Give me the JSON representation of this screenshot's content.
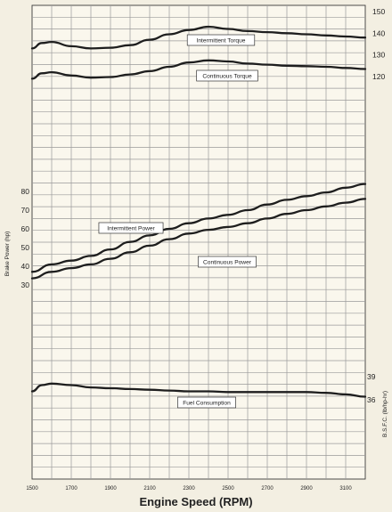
{
  "chart_data": {
    "type": "line",
    "xlabel": "Engine Speed (RPM)",
    "x_ticks": [
      "1500",
      "1700",
      "1900",
      "2100",
      "2300",
      "2500",
      "2700",
      "2900",
      "3100"
    ],
    "xlim": [
      1500,
      3200
    ],
    "panels": [
      {
        "id": "torque",
        "ylabel": "",
        "yticks": [
          120,
          130,
          140,
          150
        ],
        "ylim": [
          112,
          152
        ],
        "series": [
          {
            "name": "Intermittent Torque",
            "points": [
              [
                1500,
                133
              ],
              [
                1550,
                135.5
              ],
              [
                1600,
                136
              ],
              [
                1700,
                134
              ],
              [
                1800,
                133
              ],
              [
                1900,
                133.3
              ],
              [
                2000,
                134.5
              ],
              [
                2100,
                137
              ],
              [
                2200,
                139.5
              ],
              [
                2300,
                141.5
              ],
              [
                2400,
                143
              ],
              [
                2500,
                142
              ],
              [
                2600,
                141
              ],
              [
                2700,
                140.5
              ],
              [
                2800,
                140
              ],
              [
                2900,
                139.5
              ],
              [
                3000,
                139
              ],
              [
                3100,
                138.5
              ],
              [
                3200,
                138
              ]
            ]
          },
          {
            "name": "Continuous Torque",
            "points": [
              [
                1500,
                119
              ],
              [
                1550,
                121.5
              ],
              [
                1600,
                122
              ],
              [
                1700,
                120.5
              ],
              [
                1800,
                119.5
              ],
              [
                1900,
                119.8
              ],
              [
                2000,
                121
              ],
              [
                2100,
                122.5
              ],
              [
                2200,
                124.5
              ],
              [
                2300,
                126.5
              ],
              [
                2400,
                127.5
              ],
              [
                2500,
                127
              ],
              [
                2600,
                126
              ],
              [
                2700,
                125.5
              ],
              [
                2800,
                125
              ],
              [
                2900,
                124.8
              ],
              [
                3000,
                124.5
              ],
              [
                3100,
                124
              ],
              [
                3200,
                123.5
              ]
            ]
          }
        ]
      },
      {
        "id": "power",
        "ylabel": "Brake Power (hp)",
        "yticks": [
          30,
          40,
          50,
          60,
          70,
          80
        ],
        "ylim": [
          21,
          85
        ],
        "series": [
          {
            "name": "Intermittent Power",
            "points": [
              [
                1500,
                37
              ],
              [
                1600,
                41
              ],
              [
                1700,
                43
              ],
              [
                1800,
                45.5
              ],
              [
                1900,
                49
              ],
              [
                2000,
                53
              ],
              [
                2100,
                56.5
              ],
              [
                2200,
                60
              ],
              [
                2300,
                63
              ],
              [
                2400,
                65.5
              ],
              [
                2500,
                67.5
              ],
              [
                2600,
                70
              ],
              [
                2700,
                73
              ],
              [
                2800,
                75.5
              ],
              [
                2900,
                77.5
              ],
              [
                3000,
                79.5
              ],
              [
                3100,
                82
              ],
              [
                3200,
                84
              ]
            ]
          },
          {
            "name": "Continuous Power",
            "points": [
              [
                1500,
                33.5
              ],
              [
                1600,
                37
              ],
              [
                1700,
                39
              ],
              [
                1800,
                41
              ],
              [
                1900,
                44
              ],
              [
                2000,
                47.5
              ],
              [
                2100,
                51
              ],
              [
                2200,
                54.5
              ],
              [
                2300,
                57.5
              ],
              [
                2400,
                59.5
              ],
              [
                2500,
                61
              ],
              [
                2600,
                63
              ],
              [
                2700,
                65.5
              ],
              [
                2800,
                68
              ],
              [
                2900,
                70
              ],
              [
                3000,
                72
              ],
              [
                3100,
                74
              ],
              [
                3200,
                76
              ]
            ]
          }
        ]
      },
      {
        "id": "bsfc",
        "ylabel": "B.S.F.C. (lb/hp-hr)",
        "yticks": [
          36,
          39
        ],
        "ylim": [
          34.5,
          39.5
        ],
        "series": [
          {
            "name": "Fuel Consumption",
            "points": [
              [
                1500,
                37.1
              ],
              [
                1550,
                37.9
              ],
              [
                1600,
                38.1
              ],
              [
                1700,
                37.9
              ],
              [
                1800,
                37.6
              ],
              [
                1900,
                37.5
              ],
              [
                2000,
                37.4
              ],
              [
                2100,
                37.3
              ],
              [
                2200,
                37.2
              ],
              [
                2300,
                37.1
              ],
              [
                2400,
                37.1
              ],
              [
                2500,
                37.0
              ],
              [
                2600,
                37.0
              ],
              [
                2700,
                37.0
              ],
              [
                2800,
                37.0
              ],
              [
                2900,
                37.0
              ],
              [
                3000,
                36.9
              ],
              [
                3100,
                36.7
              ],
              [
                3200,
                36.4
              ]
            ]
          }
        ]
      }
    ],
    "grid": true
  }
}
